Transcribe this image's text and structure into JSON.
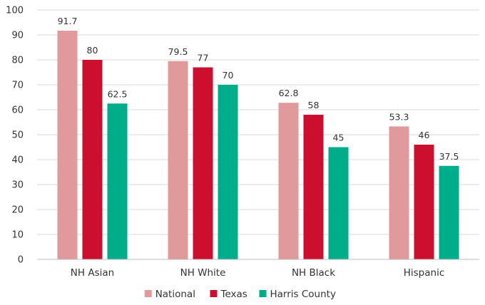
{
  "chart_data": {
    "type": "bar",
    "title": "",
    "xlabel": "",
    "ylabel": "",
    "ylim": [
      0,
      100
    ],
    "yticks": [
      0,
      10,
      20,
      30,
      40,
      50,
      60,
      70,
      80,
      90,
      100
    ],
    "grid": true,
    "legend_position": "bottom",
    "categories": [
      "NH Asian",
      "NH White",
      "NH Black",
      "Hispanic"
    ],
    "series": [
      {
        "name": "National",
        "color": "#e09a9c",
        "values": [
          91.7,
          79.5,
          62.8,
          53.3
        ]
      },
      {
        "name": "Texas",
        "color": "#cc0f2f",
        "values": [
          80,
          77,
          58,
          46
        ]
      },
      {
        "name": "Harris County",
        "color": "#00ad8a",
        "values": [
          62.5,
          70,
          45,
          37.5
        ]
      }
    ]
  }
}
